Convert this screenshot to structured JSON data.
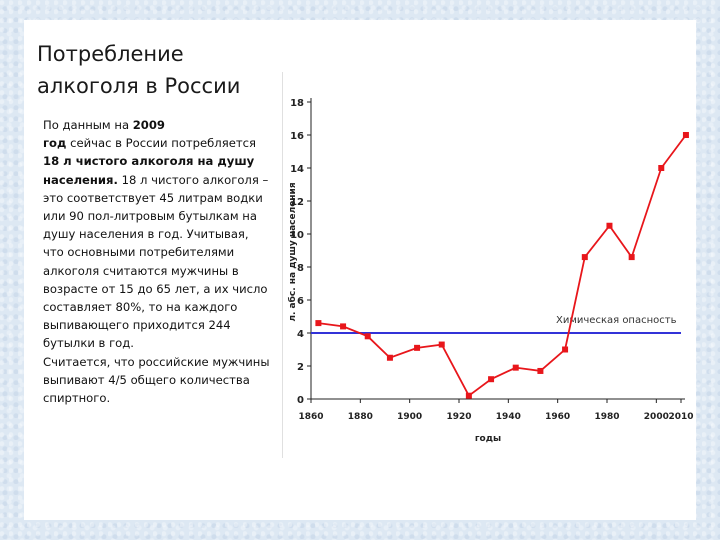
{
  "slide": {
    "title_line1": "Потребление",
    "title_line2": "алкоголя в России",
    "text": {
      "p1": "По данным на ",
      "p1_bold_year": "2009",
      "p1_bold_god": "год",
      "p2": " сейчас в России потребляется ",
      "p2_bold": "18 л чистого алкоголя на душу населения.",
      "p3": " 18 л чистого алкоголя – это соответствует 45 литрам водки или 90 пол-литровым бутылкам на душу населения в год. Учитывая, что основными потребителями алкоголя считаются мужчины в возрасте от 15 до 65 лет, а их число составляет 80%, то на каждого выпивающего приходится 244 бутылки в год.",
      "p4": "Считается, что российские мужчины выпивают 4/5 общего количества спиртного."
    }
  },
  "chart_data": {
    "type": "line",
    "xlabel": "годы",
    "ylabel": "л. абс. на душу населения",
    "xlim": [
      1860,
      2010
    ],
    "ylim": [
      0,
      18
    ],
    "x_ticks": [
      "1860",
      "1880",
      "1900",
      "1920",
      "1940",
      "1960",
      "1980",
      "2000",
      "2010"
    ],
    "x_tick_values": [
      1860,
      1880,
      1900,
      1920,
      1940,
      1960,
      1980,
      2000,
      2010
    ],
    "y_ticks": [
      "0",
      "2",
      "4",
      "6",
      "8",
      "10",
      "12",
      "14",
      "16",
      "18"
    ],
    "y_tick_values": [
      0,
      2,
      4,
      6,
      8,
      10,
      12,
      14,
      16,
      18
    ],
    "series": [
      {
        "color": "#e8161b",
        "x": [
          1863,
          1873,
          1883,
          1892,
          1903,
          1913,
          1924,
          1933,
          1943,
          1953,
          1963,
          1971,
          1981,
          1990,
          2002,
          2012
        ],
        "y": [
          4.6,
          4.4,
          3.8,
          2.5,
          3.1,
          3.3,
          0.2,
          1.2,
          1.9,
          1.7,
          3.0,
          8.6,
          10.5,
          8.6,
          14.0,
          16.0
        ]
      }
    ],
    "reference_line": {
      "label": "Химическая опасность",
      "value": 4,
      "color": "#3232d8"
    },
    "grid": false,
    "legend": "none"
  }
}
